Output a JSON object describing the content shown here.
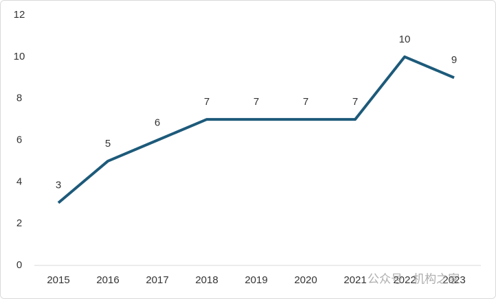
{
  "chart_data": {
    "type": "line",
    "categories": [
      "2015",
      "2016",
      "2017",
      "2018",
      "2019",
      "2020",
      "2021",
      "2022",
      "2023"
    ],
    "series": [
      {
        "color": "#1d5a7a",
        "values": [
          3,
          5,
          6,
          7,
          7,
          7,
          7,
          10,
          9
        ]
      }
    ],
    "ylim": [
      0,
      12
    ],
    "yticks": [
      0,
      2,
      4,
      6,
      8,
      10,
      12
    ],
    "grid": false,
    "watermark": "公众号 · 机构之家"
  }
}
